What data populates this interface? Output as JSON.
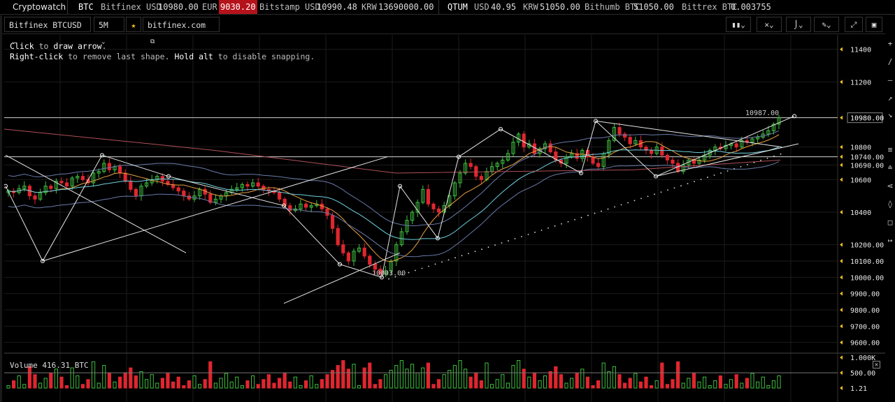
{
  "brand": "Cryptowatch",
  "ticker": {
    "btc": {
      "symbol": "BTC",
      "quotes": [
        {
          "label": "Bitfinex USD",
          "value": "10980.00"
        },
        {
          "label": "EUR",
          "value": "9030.20",
          "negative": true
        },
        {
          "label": "Bitstamp USD",
          "value": "10990.48"
        },
        {
          "label": "KRW",
          "value": "13690000.00"
        }
      ]
    },
    "qtum": {
      "symbol": "QTUM",
      "quotes": [
        {
          "label": "USD",
          "value": "40.95"
        },
        {
          "label": "KRW",
          "value": "51050.00"
        },
        {
          "label": "Bithumb BTC",
          "value": "51050.00"
        },
        {
          "label": "Bittrex BTC",
          "value": "0.003755"
        }
      ]
    }
  },
  "toolbar": {
    "market": "Bitfinex BTCUSD",
    "interval": "5M",
    "exchange_link": "bitfinex.com",
    "chart_type_icon": "candles-icon",
    "tools_icon": "crosshair-icon",
    "indicators_icon": "indicator-icon",
    "draw_icon": "pencil-icon",
    "fullscreen_icon": "expand-icon",
    "save_icon": "save-icon"
  },
  "hint": {
    "line1_key": "Click",
    "line1_rest": "to",
    "line1_action": "draw arrow",
    "line1_end": ".",
    "line2_key": "Right-click",
    "line2_rest": "to remove last shape.",
    "line2_key2": "Hold alt",
    "line2_rest2": "to disable snapping."
  },
  "volume": {
    "label": "Volume",
    "value": "416.31 BTC"
  },
  "colors": {
    "up": "#3fbf3f",
    "down": "#e0262f",
    "grid": "#1b1b1b",
    "axis": "#e8e8e8",
    "accent": "#e8c020"
  },
  "chart_data": {
    "type": "candlestick",
    "price_ticks": [
      "11400",
      "11200",
      "10980.00",
      "10800",
      "10740.00",
      "10690.00",
      "10600",
      "10400",
      "10200.00",
      "10100.00",
      "10000.00",
      "9900.00",
      "9800.00",
      "9700.00",
      "9600.00"
    ],
    "price_tick_values": [
      11400,
      11200,
      10980,
      10800,
      10740,
      10690,
      10600,
      10400,
      10200,
      10100,
      10000,
      9900,
      9800,
      9700,
      9600
    ],
    "ylim": [
      9560,
      11480
    ],
    "volume_ticks": [
      "1.000K",
      "500.00",
      "1.21"
    ],
    "volume_tick_values": [
      1000,
      500,
      1.21
    ],
    "volume_ylim": [
      0,
      1050
    ],
    "annotations": [
      {
        "text": "10987.00",
        "price": 10987
      },
      {
        "text": "10003.00",
        "price": 10003
      }
    ],
    "horizontal_lines": [
      10980,
      10740
    ],
    "closes": [
      10530,
      10520,
      10545,
      10560,
      10500,
      10480,
      10520,
      10560,
      10545,
      10590,
      10580,
      10560,
      10610,
      10620,
      10600,
      10580,
      10640,
      10650,
      10700,
      10660,
      10680,
      10640,
      10590,
      10540,
      10500,
      10560,
      10580,
      10600,
      10620,
      10590,
      10570,
      10550,
      10530,
      10500,
      10480,
      10500,
      10540,
      10510,
      10460,
      10480,
      10500,
      10520,
      10540,
      10550,
      10570,
      10560,
      10580,
      10560,
      10540,
      10530,
      10520,
      10480,
      10440,
      10410,
      10420,
      10450,
      10430,
      10440,
      10450,
      10420,
      10380,
      10300,
      10200,
      10150,
      10100,
      10160,
      10180,
      10130,
      10080,
      10050,
      10020,
      10040,
      10100,
      10200,
      10280,
      10350,
      10400,
      10460,
      10540,
      10450,
      10420,
      10400,
      10440,
      10500,
      10580,
      10640,
      10700,
      10680,
      10620,
      10600,
      10650,
      10680,
      10700,
      10720,
      10760,
      10830,
      10880,
      10800,
      10820,
      10760,
      10790,
      10820,
      10770,
      10720,
      10700,
      10740,
      10760,
      10730,
      10780,
      10740,
      10700,
      10680,
      10760,
      10840,
      10920,
      10880,
      10860,
      10820,
      10840,
      10800,
      10780,
      10760,
      10800,
      10750,
      10720,
      10700,
      10650,
      10690,
      10720,
      10700,
      10720,
      10750,
      10780,
      10800,
      10790,
      10810,
      10820,
      10800,
      10840,
      10830,
      10850,
      10860,
      10880,
      10900,
      10940,
      10980
    ]
  }
}
